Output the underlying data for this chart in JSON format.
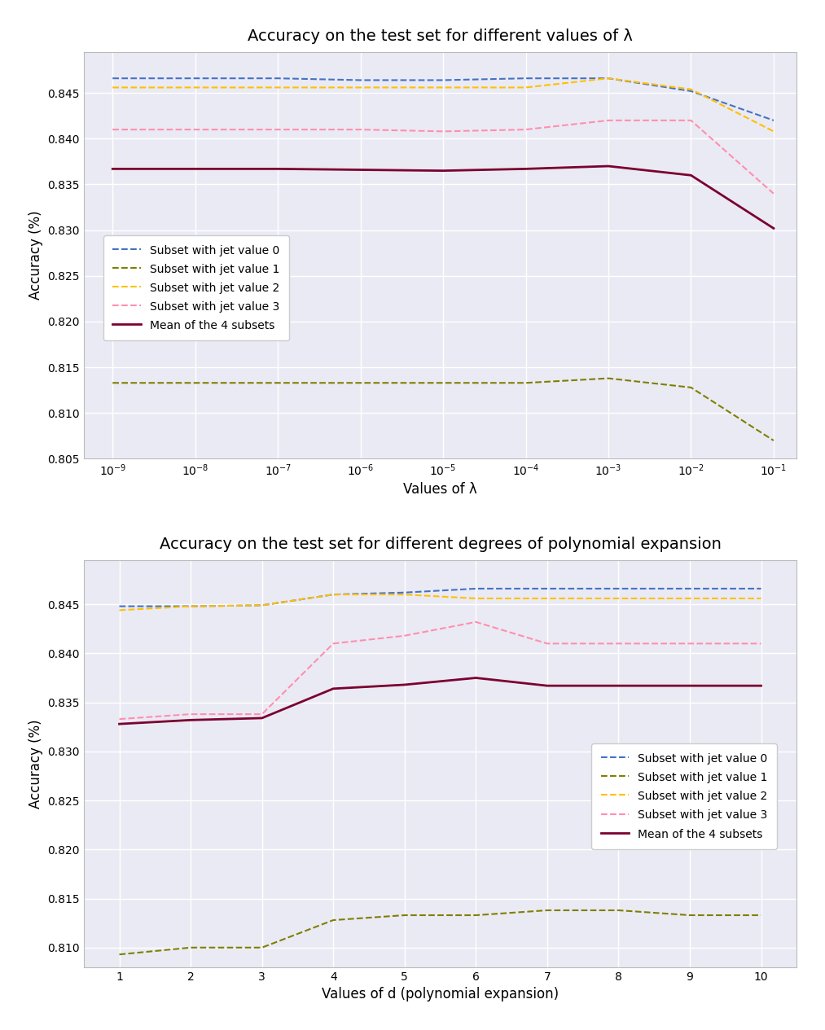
{
  "title1": "Accuracy on the test set for different values of λ",
  "title2": "Accuracy on the test set for different degrees of polynomial expansion",
  "xlabel1": "Values of λ",
  "xlabel2": "Values of d (polynomial expansion)",
  "ylabel": "Accuracy (%)",
  "lambda_x": [
    -9,
    -8,
    -7,
    -6,
    -5,
    -4,
    -3,
    -2,
    -1
  ],
  "lambda_jet0": [
    0.8466,
    0.8466,
    0.8466,
    0.8464,
    0.8464,
    0.8466,
    0.8466,
    0.8452,
    0.842
  ],
  "lambda_jet1": [
    0.8133,
    0.8133,
    0.8133,
    0.8133,
    0.8133,
    0.8133,
    0.8138,
    0.8128,
    0.807
  ],
  "lambda_jet2": [
    0.8456,
    0.8456,
    0.8456,
    0.8456,
    0.8456,
    0.8456,
    0.8466,
    0.8454,
    0.8408
  ],
  "lambda_jet3": [
    0.841,
    0.841,
    0.841,
    0.841,
    0.8408,
    0.841,
    0.842,
    0.842,
    0.834
  ],
  "lambda_mean": [
    0.8367,
    0.8367,
    0.8367,
    0.8366,
    0.8365,
    0.8367,
    0.837,
    0.836,
    0.8302
  ],
  "poly_x": [
    1,
    2,
    3,
    4,
    5,
    6,
    7,
    8,
    9,
    10
  ],
  "poly_jet0": [
    0.8448,
    0.8448,
    0.8449,
    0.846,
    0.8462,
    0.8466,
    0.8466,
    0.8466,
    0.8466,
    0.8466
  ],
  "poly_jet1": [
    0.8093,
    0.81,
    0.81,
    0.8128,
    0.8133,
    0.8133,
    0.8138,
    0.8138,
    0.8133,
    0.8133
  ],
  "poly_jet2": [
    0.8444,
    0.8448,
    0.8449,
    0.846,
    0.846,
    0.8456,
    0.8456,
    0.8456,
    0.8456,
    0.8456
  ],
  "poly_jet3": [
    0.8333,
    0.8338,
    0.8338,
    0.841,
    0.8418,
    0.8432,
    0.841,
    0.841,
    0.841,
    0.841
  ],
  "poly_mean": [
    0.8328,
    0.8332,
    0.8334,
    0.8364,
    0.8368,
    0.8375,
    0.8367,
    0.8367,
    0.8367,
    0.8367
  ],
  "color_jet0": "#4472C4",
  "color_jet1": "#7f7f00",
  "color_jet2": "#FFC000",
  "color_jet3": "#FF8FAF",
  "color_mean": "#7B0030",
  "bg_color": "#eaeaf4",
  "grid_color": "white",
  "ylim1": [
    0.805,
    0.8495
  ],
  "ylim2": [
    0.808,
    0.8495
  ],
  "yticks1": [
    0.805,
    0.81,
    0.815,
    0.82,
    0.825,
    0.83,
    0.835,
    0.84,
    0.845
  ],
  "yticks2": [
    0.81,
    0.815,
    0.82,
    0.825,
    0.83,
    0.835,
    0.84,
    0.845
  ]
}
